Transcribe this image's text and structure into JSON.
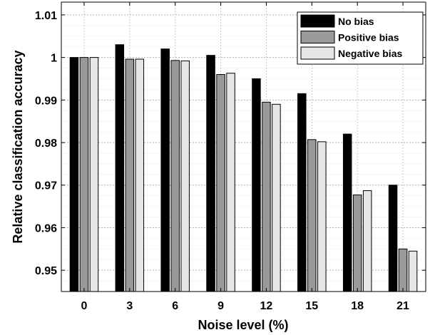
{
  "chart_data": {
    "type": "bar",
    "xlabel": "Noise level (%)",
    "ylabel": "Relative classification accuracy",
    "categories": [
      "0",
      "3",
      "6",
      "9",
      "12",
      "15",
      "18",
      "21"
    ],
    "ylim": [
      0.945,
      1.013
    ],
    "yticks": [
      0.95,
      0.96,
      0.97,
      0.98,
      0.99,
      1,
      1.01
    ],
    "ytick_labels": [
      "0.95",
      "0.96",
      "0.97",
      "0.98",
      "0.99",
      "1",
      "1.01"
    ],
    "grid": true,
    "legend_position": "top-right",
    "series": [
      {
        "name": "No bias",
        "color": "#000000",
        "values": [
          1.0,
          1.003,
          1.002,
          1.0005,
          0.995,
          0.9915,
          0.982,
          0.97
        ]
      },
      {
        "name": "Positive bias",
        "color": "#999999",
        "values": [
          1.0,
          0.9996,
          0.9993,
          0.996,
          0.9895,
          0.9807,
          0.9677,
          0.955
        ]
      },
      {
        "name": "Negative bias",
        "color": "#e6e6e6",
        "values": [
          1.0,
          0.9996,
          0.9992,
          0.9963,
          0.989,
          0.9802,
          0.9687,
          0.9545
        ]
      }
    ]
  }
}
